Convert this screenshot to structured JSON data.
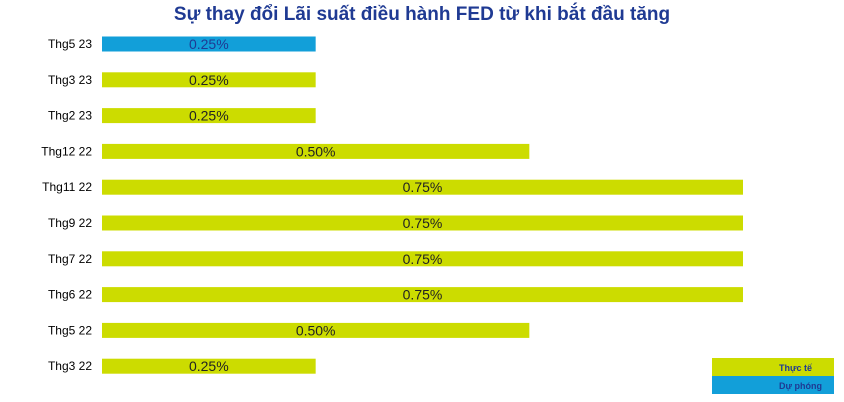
{
  "chart_data": {
    "type": "bar",
    "orientation": "horizontal",
    "title": "Sự thay đổi Lãi suất điều hành FED từ khi bắt đầu tăng",
    "categories": [
      "Thg5 23",
      "Thg3 23",
      "Thg2 23",
      "Thg12 22",
      "Thg11 22",
      "Thg9 22",
      "Thg7 22",
      "Thg6 22",
      "Thg5 22",
      "Thg3 22"
    ],
    "values": [
      0.25,
      0.25,
      0.25,
      0.5,
      0.75,
      0.75,
      0.75,
      0.75,
      0.5,
      0.25
    ],
    "value_labels": [
      "0.25%",
      "0.25%",
      "0.25%",
      "0.50%",
      "0.75%",
      "0.75%",
      "0.75%",
      "0.75%",
      "0.50%",
      "0.25%"
    ],
    "series_of_point": [
      "forecast",
      "actual",
      "actual",
      "actual",
      "actual",
      "actual",
      "actual",
      "actual",
      "actual",
      "actual"
    ],
    "xlim": [
      0,
      0.75
    ],
    "grid": false,
    "legend_position": "bottom-right",
    "legend": [
      {
        "key": "actual",
        "label": "Thực tế",
        "color": "#ccdc00"
      },
      {
        "key": "forecast",
        "label": "Dự phóng",
        "color": "#129fd9"
      }
    ]
  }
}
